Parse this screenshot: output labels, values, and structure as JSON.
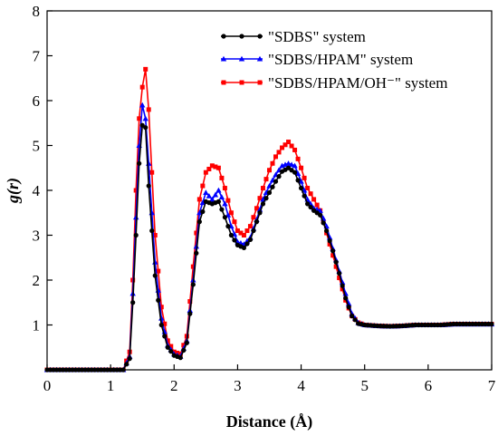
{
  "chart_data": {
    "type": "line",
    "title": "",
    "xlabel": "Distance (Å)",
    "ylabel": "g(r)",
    "xlim": [
      0,
      7
    ],
    "ylim": [
      0,
      8
    ],
    "x_ticks": [
      0,
      1,
      2,
      3,
      4,
      5,
      6,
      7
    ],
    "y_ticks": [
      1,
      2,
      3,
      4,
      5,
      6,
      7,
      8
    ],
    "x_tick_labels": [
      "0",
      "1",
      "2",
      "3",
      "4",
      "5",
      "6",
      "7"
    ],
    "y_tick_labels": [
      "1",
      "2",
      "3",
      "4",
      "5",
      "6",
      "7",
      "8"
    ],
    "grid": false,
    "legend_position": "top-right",
    "series": [
      {
        "name": "\"SDBS\" system",
        "color": "#000000",
        "marker": "circle",
        "x": [
          0,
          1.2,
          1.3,
          1.35,
          1.4,
          1.45,
          1.5,
          1.55,
          1.6,
          1.7,
          1.8,
          1.9,
          2.0,
          2.1,
          2.2,
          2.3,
          2.4,
          2.5,
          2.6,
          2.7,
          2.8,
          2.9,
          3.0,
          3.1,
          3.2,
          3.3,
          3.4,
          3.5,
          3.6,
          3.7,
          3.8,
          3.9,
          4.0,
          4.1,
          4.2,
          4.3,
          4.4,
          4.5,
          4.6,
          4.7,
          4.8,
          4.9,
          5.0,
          5.2,
          5.4,
          5.6,
          5.8,
          6.0,
          6.2,
          6.4,
          6.6,
          6.8,
          7.0
        ],
        "y": [
          0,
          0,
          0.25,
          1.5,
          3.0,
          4.6,
          5.45,
          5.4,
          4.1,
          2.1,
          1.0,
          0.5,
          0.32,
          0.27,
          0.6,
          1.9,
          3.3,
          3.75,
          3.7,
          3.75,
          3.4,
          3.0,
          2.78,
          2.72,
          2.9,
          3.3,
          3.7,
          3.95,
          4.2,
          4.42,
          4.5,
          4.4,
          4.05,
          3.7,
          3.55,
          3.45,
          3.1,
          2.65,
          2.15,
          1.6,
          1.2,
          1.03,
          1.0,
          0.98,
          0.97,
          0.98,
          1.0,
          1.0,
          1.0,
          1.02,
          1.02,
          1.02,
          1.02
        ]
      },
      {
        "name": "\"SDBS/HPAM\" system",
        "color": "#0000ff",
        "marker": "triangle",
        "x": [
          0,
          1.2,
          1.3,
          1.35,
          1.4,
          1.45,
          1.5,
          1.55,
          1.6,
          1.7,
          1.8,
          1.9,
          2.0,
          2.1,
          2.2,
          2.3,
          2.4,
          2.5,
          2.6,
          2.7,
          2.8,
          2.9,
          3.0,
          3.1,
          3.2,
          3.3,
          3.4,
          3.5,
          3.6,
          3.7,
          3.8,
          3.9,
          4.0,
          4.1,
          4.2,
          4.3,
          4.4,
          4.5,
          4.6,
          4.7,
          4.8,
          4.9,
          5.0,
          5.2,
          5.4,
          5.6,
          5.8,
          6.0,
          6.2,
          6.4,
          6.6,
          6.8,
          7.0
        ],
        "y": [
          0,
          0,
          0.3,
          1.7,
          3.4,
          5.0,
          5.9,
          5.6,
          4.6,
          2.4,
          1.15,
          0.55,
          0.35,
          0.3,
          0.65,
          2.0,
          3.5,
          3.95,
          3.8,
          4.0,
          3.7,
          3.2,
          2.85,
          2.8,
          2.95,
          3.35,
          3.8,
          4.1,
          4.35,
          4.55,
          4.6,
          4.55,
          4.2,
          3.8,
          3.6,
          3.55,
          3.2,
          2.7,
          2.2,
          1.7,
          1.25,
          1.05,
          1.0,
          0.98,
          0.97,
          0.98,
          1.0,
          1.0,
          1.0,
          1.02,
          1.02,
          1.02,
          1.02
        ]
      },
      {
        "name": "\"SDBS/HPAM/OH⁻\" system",
        "color": "#ff0000",
        "marker": "square",
        "x": [
          0,
          1.2,
          1.3,
          1.35,
          1.4,
          1.45,
          1.5,
          1.55,
          1.6,
          1.7,
          1.8,
          1.9,
          2.0,
          2.1,
          2.2,
          2.3,
          2.4,
          2.5,
          2.6,
          2.7,
          2.8,
          2.9,
          3.0,
          3.1,
          3.2,
          3.3,
          3.4,
          3.5,
          3.6,
          3.7,
          3.8,
          3.9,
          4.0,
          4.1,
          4.2,
          4.3,
          4.4,
          4.5,
          4.6,
          4.7,
          4.8,
          4.9,
          5.0,
          5.2,
          5.4,
          5.6,
          5.8,
          6.0,
          6.2,
          6.4,
          6.6,
          6.8,
          7.0
        ],
        "y": [
          0,
          0,
          0.4,
          2.0,
          4.0,
          5.6,
          6.3,
          6.7,
          5.8,
          3.0,
          1.4,
          0.65,
          0.4,
          0.35,
          0.75,
          2.3,
          3.8,
          4.4,
          4.55,
          4.5,
          4.05,
          3.5,
          3.1,
          3.0,
          3.2,
          3.6,
          4.05,
          4.45,
          4.75,
          4.95,
          5.08,
          4.9,
          4.5,
          4.05,
          3.8,
          3.55,
          3.05,
          2.55,
          2.05,
          1.55,
          1.2,
          1.05,
          1.0,
          0.98,
          0.97,
          0.98,
          1.0,
          1.0,
          1.0,
          1.02,
          1.02,
          1.02,
          1.02
        ]
      }
    ]
  }
}
